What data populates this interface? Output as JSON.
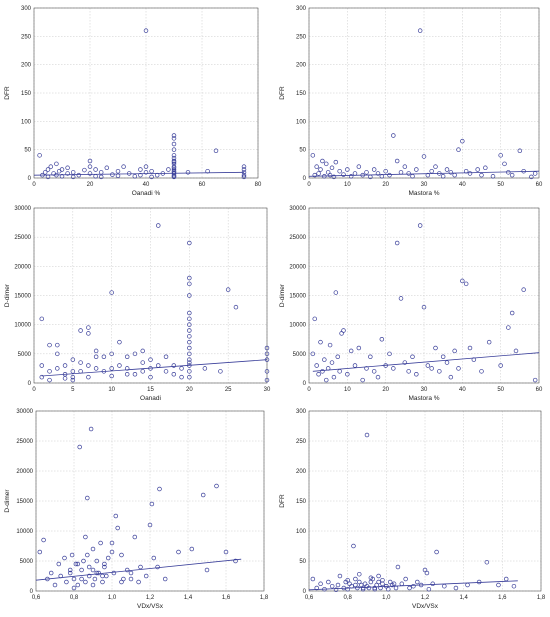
{
  "chart_data": [
    {
      "type": "scatter",
      "xlabel": "Qanadi %",
      "ylabel": "DFR",
      "xlim": [
        0,
        80
      ],
      "ylim": [
        0,
        300
      ],
      "xticks": [
        0,
        20,
        40,
        60,
        80
      ],
      "yticks": [
        0,
        50,
        100,
        150,
        200,
        250,
        300
      ],
      "grid": true,
      "trend": [
        [
          0,
          5
        ],
        [
          75,
          10
        ]
      ],
      "x": [
        2,
        3,
        4,
        5,
        5,
        6,
        7,
        8,
        8,
        9,
        10,
        10,
        12,
        12,
        14,
        14,
        16,
        18,
        20,
        20,
        20,
        22,
        22,
        24,
        24,
        26,
        28,
        30,
        30,
        32,
        34,
        36,
        38,
        38,
        40,
        40,
        40,
        42,
        42,
        44,
        46,
        48,
        50,
        50,
        50,
        50,
        50,
        50,
        50,
        50,
        50,
        50,
        50,
        50,
        50,
        50,
        50,
        50,
        50,
        50,
        55,
        62,
        65,
        75,
        75,
        75,
        75,
        75
      ],
      "y": [
        40,
        5,
        10,
        15,
        2,
        20,
        8,
        25,
        5,
        12,
        3,
        15,
        8,
        18,
        2,
        10,
        5,
        14,
        30,
        20,
        8,
        3,
        15,
        10,
        2,
        18,
        6,
        12,
        4,
        20,
        8,
        3,
        15,
        5,
        260,
        20,
        10,
        2,
        12,
        5,
        8,
        15,
        75,
        70,
        60,
        50,
        40,
        35,
        30,
        28,
        25,
        20,
        18,
        15,
        12,
        10,
        8,
        5,
        3,
        2,
        10,
        12,
        48,
        20,
        15,
        10,
        5,
        2
      ]
    },
    {
      "type": "scatter",
      "xlabel": "Mastora %",
      "ylabel": "DFR",
      "xlim": [
        0,
        60
      ],
      "ylim": [
        0,
        300
      ],
      "xticks": [
        0,
        10,
        20,
        30,
        40,
        50,
        60
      ],
      "yticks": [
        0,
        50,
        100,
        150,
        200,
        250,
        300
      ],
      "grid": true,
      "trend": [
        [
          0,
          3
        ],
        [
          60,
          12
        ]
      ],
      "x": [
        1,
        1.5,
        2,
        2.5,
        3,
        3.5,
        4,
        4.5,
        5,
        5.5,
        6,
        6.5,
        7,
        8,
        9,
        10,
        11,
        12,
        13,
        14,
        15,
        16,
        17,
        18,
        19,
        20,
        21,
        22,
        23,
        24,
        25,
        26,
        27,
        28,
        29,
        30,
        31,
        32,
        33,
        34,
        35,
        36,
        37,
        38,
        39,
        40,
        41,
        42,
        44,
        45,
        46,
        48,
        50,
        51,
        52,
        53,
        55,
        56,
        58,
        59
      ],
      "y": [
        40,
        5,
        20,
        8,
        15,
        30,
        3,
        25,
        10,
        5,
        18,
        2,
        28,
        12,
        6,
        15,
        3,
        8,
        20,
        5,
        10,
        2,
        15,
        8,
        3,
        12,
        5,
        75,
        30,
        10,
        20,
        8,
        3,
        15,
        260,
        38,
        5,
        12,
        20,
        8,
        3,
        15,
        10,
        5,
        50,
        65,
        12,
        8,
        15,
        5,
        18,
        3,
        40,
        25,
        10,
        5,
        48,
        12,
        2,
        8
      ]
    },
    {
      "type": "scatter",
      "xlabel": "Qanadi",
      "ylabel": "D-dimer",
      "xlim": [
        0,
        30
      ],
      "ylim": [
        0,
        30000
      ],
      "xticks": [
        0,
        5,
        10,
        15,
        20,
        25,
        30
      ],
      "yticks": [
        0,
        5000,
        10000,
        15000,
        20000,
        25000,
        30000
      ],
      "grid": true,
      "trend": [
        [
          1,
          1200
        ],
        [
          30,
          4000
        ]
      ],
      "x": [
        1,
        1,
        1,
        2,
        2,
        2,
        3,
        3,
        3,
        4,
        4,
        4,
        5,
        5,
        5,
        5,
        6,
        6,
        6,
        7,
        7,
        7,
        7,
        8,
        8,
        8,
        9,
        9,
        10,
        10,
        10,
        10,
        11,
        11,
        12,
        12,
        12,
        13,
        13,
        14,
        14,
        14,
        15,
        15,
        15,
        16,
        16,
        17,
        17,
        18,
        18,
        19,
        19,
        20,
        20,
        20,
        20,
        20,
        20,
        20,
        20,
        20,
        20,
        20,
        20,
        20,
        20,
        20,
        20,
        20,
        22,
        24,
        25,
        26,
        30,
        30,
        30,
        30,
        30
      ],
      "y": [
        11000,
        3000,
        1000,
        6500,
        2000,
        500,
        5000,
        2500,
        6500,
        3000,
        1500,
        800,
        4000,
        2000,
        500,
        1000,
        3500,
        2000,
        9000,
        8500,
        9500,
        3000,
        1000,
        4500,
        2500,
        5500,
        2000,
        4500,
        15500,
        1200,
        2500,
        5000,
        7000,
        3000,
        2500,
        4500,
        1500,
        5000,
        1500,
        5500,
        2000,
        3500,
        4000,
        1000,
        2500,
        27000,
        3000,
        2000,
        4500,
        3000,
        1500,
        2500,
        1000,
        24000,
        18000,
        17000,
        15000,
        12000,
        11000,
        10000,
        9000,
        8000,
        7000,
        6000,
        5000,
        4000,
        3000,
        2000,
        1000,
        3500,
        2500,
        2000,
        16000,
        13000,
        4000,
        5000,
        2000,
        500,
        6000
      ]
    },
    {
      "type": "scatter",
      "xlabel": "Mastora %",
      "ylabel": "D-dimer",
      "xlim": [
        0,
        60
      ],
      "ylim": [
        0,
        30000
      ],
      "xticks": [
        0,
        10,
        20,
        30,
        40,
        50,
        60
      ],
      "yticks": [
        0,
        5000,
        10000,
        15000,
        20000,
        25000,
        30000
      ],
      "grid": true,
      "trend": [
        [
          1,
          2000
        ],
        [
          60,
          5200
        ]
      ],
      "x": [
        1,
        1.5,
        2,
        2.5,
        3,
        3.5,
        4,
        4.5,
        5,
        5.5,
        6,
        6.5,
        7,
        7.5,
        8,
        8.5,
        9,
        10,
        11,
        12,
        13,
        14,
        15,
        16,
        17,
        18,
        19,
        20,
        21,
        22,
        23,
        24,
        25,
        26,
        27,
        28,
        29,
        30,
        31,
        32,
        33,
        34,
        35,
        36,
        37,
        38,
        39,
        40,
        41,
        42,
        43,
        45,
        47,
        50,
        52,
        53,
        54,
        56,
        59
      ],
      "y": [
        5000,
        11000,
        3000,
        1500,
        7000,
        2000,
        4000,
        500,
        2500,
        6500,
        3500,
        1000,
        15500,
        4500,
        2000,
        8500,
        9000,
        1500,
        5500,
        3000,
        6000,
        500,
        2500,
        4500,
        2000,
        1000,
        7500,
        3000,
        5000,
        2500,
        24000,
        14500,
        3500,
        2000,
        4500,
        1500,
        27000,
        13000,
        3000,
        2500,
        6000,
        2000,
        4500,
        3500,
        1000,
        5500,
        2500,
        17500,
        17000,
        6000,
        4000,
        2000,
        7000,
        3000,
        9500,
        12000,
        5500,
        16000,
        500
      ]
    },
    {
      "type": "scatter",
      "xlabel": "VDx/VSx",
      "ylabel": "D-dimer",
      "xlim": [
        0.6,
        1.8
      ],
      "ylim": [
        0,
        30000
      ],
      "xticks": [
        0.6,
        0.8,
        1.0,
        1.2,
        1.4,
        1.6,
        1.8
      ],
      "xtick_labels": [
        "0,6",
        "0,8",
        "1,0",
        "1,2",
        "1,4",
        "1,6",
        "1,8"
      ],
      "yticks": [
        0,
        5000,
        10000,
        15000,
        20000,
        25000,
        30000
      ],
      "grid": true,
      "trend": [
        [
          0.6,
          1800
        ],
        [
          1.68,
          5300
        ]
      ],
      "x": [
        0.62,
        0.64,
        0.66,
        0.68,
        0.7,
        0.72,
        0.73,
        0.75,
        0.76,
        0.78,
        0.79,
        0.8,
        0.81,
        0.82,
        0.83,
        0.84,
        0.85,
        0.86,
        0.86,
        0.87,
        0.88,
        0.88,
        0.89,
        0.9,
        0.9,
        0.91,
        0.92,
        0.93,
        0.94,
        0.95,
        0.96,
        0.97,
        0.98,
        1.0,
        1.01,
        1.02,
        1.03,
        1.05,
        1.06,
        1.08,
        1.1,
        1.12,
        1.14,
        1.15,
        1.18,
        1.2,
        1.21,
        1.22,
        1.24,
        1.25,
        1.28,
        1.35,
        1.42,
        1.48,
        1.5,
        1.55,
        1.6,
        1.65,
        0.84,
        0.87,
        0.9,
        0.82,
        0.95,
        1.0,
        1.05,
        1.1,
        0.78,
        0.8,
        0.92,
        0.96
      ],
      "y": [
        6500,
        8500,
        2000,
        3000,
        1000,
        4500,
        2500,
        5500,
        1500,
        3000,
        6000,
        2000,
        4500,
        1000,
        24000,
        3500,
        5000,
        9000,
        1500,
        15500,
        2500,
        4000,
        27000,
        3500,
        7000,
        2000,
        5000,
        3000,
        8000,
        1500,
        4000,
        2500,
        5500,
        8000,
        3000,
        12500,
        10500,
        6000,
        2000,
        3500,
        3000,
        9000,
        1500,
        4000,
        2500,
        11000,
        14500,
        5500,
        4000,
        17000,
        2000,
        6500,
        7000,
        16000,
        3500,
        17500,
        6500,
        5000,
        2000,
        6000,
        1000,
        4500,
        2500,
        6500,
        1500,
        2000,
        3500,
        500,
        3000,
        4500
      ]
    },
    {
      "type": "scatter",
      "xlabel": "VDx/VSx",
      "ylabel": "DFR",
      "xlim": [
        0.6,
        1.8
      ],
      "ylim": [
        0,
        300
      ],
      "xticks": [
        0.6,
        0.8,
        1.0,
        1.2,
        1.4,
        1.6,
        1.8
      ],
      "xtick_labels": [
        "0,6",
        "0,8",
        "1,0",
        "1,2",
        "1,4",
        "1,6",
        "1,8"
      ],
      "yticks": [
        0,
        50,
        100,
        150,
        200,
        250,
        300
      ],
      "grid": true,
      "trend": [
        [
          0.6,
          2
        ],
        [
          1.68,
          17
        ]
      ],
      "x": [
        0.62,
        0.64,
        0.66,
        0.68,
        0.7,
        0.72,
        0.74,
        0.75,
        0.76,
        0.78,
        0.79,
        0.8,
        0.81,
        0.82,
        0.83,
        0.84,
        0.85,
        0.86,
        0.87,
        0.88,
        0.89,
        0.9,
        0.9,
        0.91,
        0.92,
        0.93,
        0.94,
        0.95,
        0.96,
        0.97,
        0.98,
        1.0,
        1.01,
        1.02,
        1.03,
        1.05,
        1.06,
        1.08,
        1.1,
        1.12,
        1.14,
        1.16,
        1.18,
        1.2,
        1.21,
        1.22,
        1.24,
        1.26,
        1.3,
        1.36,
        1.42,
        1.48,
        1.52,
        1.58,
        1.62,
        1.66,
        0.8,
        0.84,
        0.88,
        0.92,
        0.96,
        1.0,
        1.04,
        0.86,
        0.94,
        0.98
      ],
      "y": [
        20,
        5,
        12,
        3,
        15,
        8,
        2,
        10,
        25,
        5,
        15,
        3,
        12,
        8,
        75,
        20,
        5,
        15,
        10,
        3,
        12,
        260,
        8,
        5,
        15,
        20,
        3,
        10,
        25,
        5,
        12,
        8,
        3,
        15,
        10,
        5,
        40,
        12,
        20,
        5,
        8,
        15,
        10,
        35,
        30,
        3,
        12,
        65,
        8,
        5,
        10,
        15,
        48,
        10,
        20,
        8,
        18,
        10,
        5,
        22,
        15,
        8,
        12,
        28,
        5,
        18
      ]
    }
  ]
}
